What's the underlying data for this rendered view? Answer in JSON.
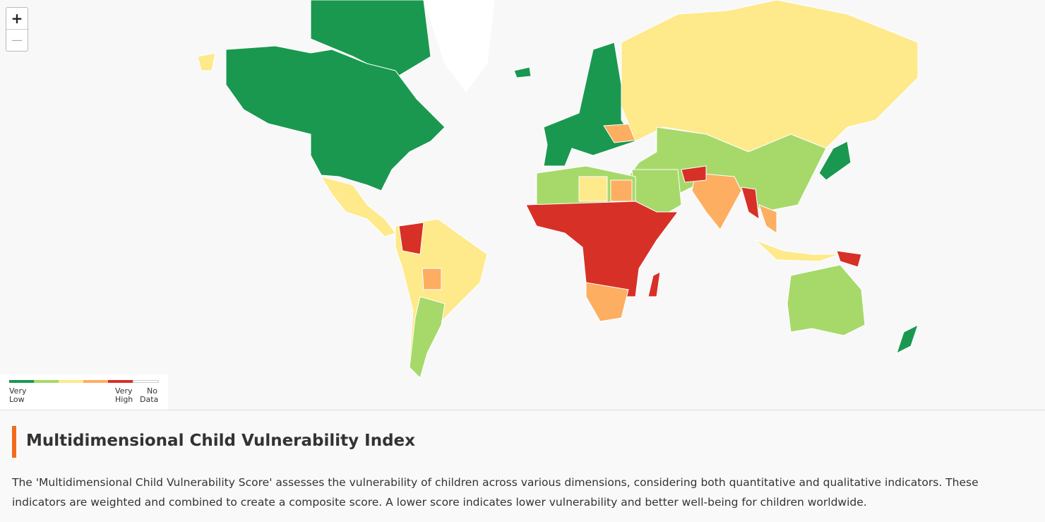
{
  "zoom": {
    "in": "+",
    "out": "—"
  },
  "legend": {
    "colors": [
      "#1a9850",
      "#a6d96a",
      "#fee98b",
      "#fdae61",
      "#d73027",
      "#ffffff"
    ],
    "labels": [
      "Very Low",
      "Very High",
      "No Data"
    ]
  },
  "header": {
    "title": "Multidimensional Child Vulnerability Index"
  },
  "description": "The 'Multidimensional Child Vulnerability Score' assesses the vulnerability of children across various dimensions, considering both quantitative and qualitative indicators. These indicators are weighted and combined to create a composite score. A lower score indicates lower vulnerability and better well-being for children worldwide."
}
